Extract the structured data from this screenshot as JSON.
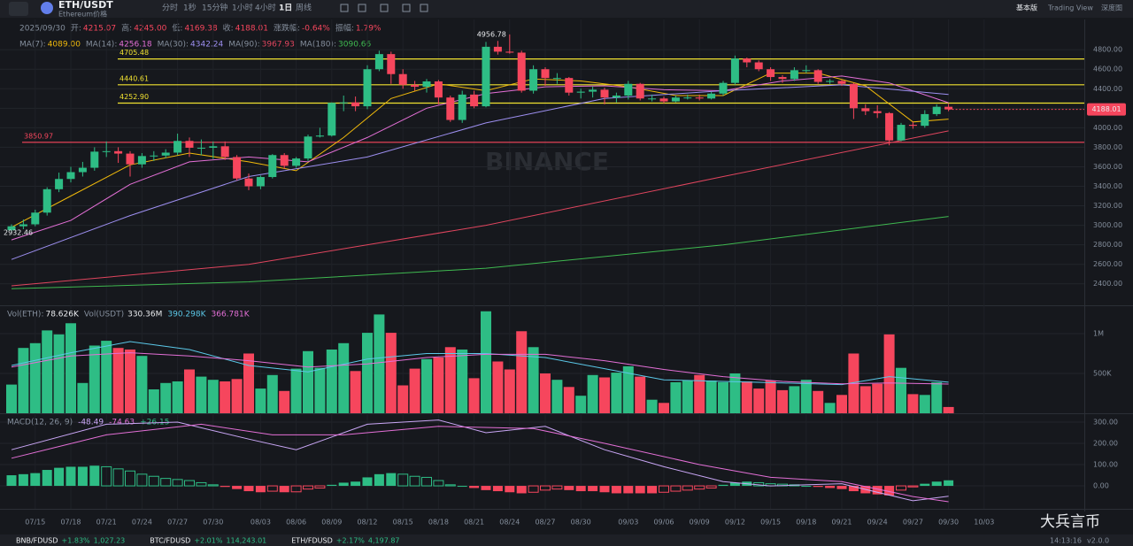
{
  "header": {
    "symbol": "ETH/USDT",
    "subtitle": "Ethereum价格",
    "intervals": [
      "分时",
      "1秒",
      "15分钟",
      "1小时",
      "4小时",
      "1日",
      "周线"
    ],
    "active": 5,
    "views": [
      "基本版",
      "Trading View",
      "深度图"
    ]
  },
  "info": {
    "date": "2025/09/30",
    "fields": [
      {
        "label": "开:",
        "value": "4215.07"
      },
      {
        "label": "高:",
        "value": "4245.00"
      },
      {
        "label": "低:",
        "value": "4169.38"
      },
      {
        "label": "收:",
        "value": "4188.01"
      },
      {
        "label": "涨跌幅:",
        "value": "-0.64%"
      },
      {
        "label": "振幅:",
        "value": "1.79%"
      }
    ]
  },
  "chart_data": {
    "type": "candlestick",
    "up_color": "#2ebd85",
    "down_color": "#f6465d",
    "watermark": "BINANCE",
    "ylim": [
      2180,
      5110
    ],
    "yticks": [
      {
        "value": 2400,
        "label": "2400.00"
      },
      {
        "value": 2600,
        "label": "2600.00"
      },
      {
        "value": 2800,
        "label": "2800.00"
      },
      {
        "value": 3000,
        "label": "3000.00"
      },
      {
        "value": 3200,
        "label": "3200.00"
      },
      {
        "value": 3400,
        "label": "3400.00"
      },
      {
        "value": 3600,
        "label": "3600.00"
      },
      {
        "value": 3800,
        "label": "3800.00"
      },
      {
        "value": 4000,
        "label": "4000.00"
      },
      {
        "value": 4200,
        "label": "4200.00"
      },
      {
        "value": 4400,
        "label": "4400.00"
      },
      {
        "value": 4600,
        "label": "4600.00"
      },
      {
        "value": 4800,
        "label": "4800.00"
      }
    ],
    "dates": [
      "07/15",
      "07/18",
      "07/21",
      "07/24",
      "07/27",
      "07/30",
      "08/03",
      "08/06",
      "08/09",
      "08/12",
      "08/15",
      "08/18",
      "08/21",
      "08/24",
      "08/27",
      "08/30",
      "09/03",
      "09/06",
      "09/09",
      "09/12",
      "09/15",
      "09/18",
      "09/21",
      "09/24",
      "09/27",
      "09/30",
      "10/03"
    ],
    "candles": [
      [
        2950,
        3010,
        2932.46,
        2990
      ],
      [
        2990,
        3060,
        2960,
        3010
      ],
      [
        3010,
        3160,
        2990,
        3130
      ],
      [
        3130,
        3390,
        3100,
        3370
      ],
      [
        3370,
        3540,
        3340,
        3475
      ],
      [
        3475,
        3600,
        3440,
        3545
      ],
      [
        3545,
        3650,
        3500,
        3590
      ],
      [
        3590,
        3800,
        3560,
        3755
      ],
      [
        3755,
        3860,
        3700,
        3760
      ],
      [
        3760,
        3800,
        3640,
        3735
      ],
      [
        3735,
        3760,
        3500,
        3625
      ],
      [
        3625,
        3740,
        3590,
        3710
      ],
      [
        3710,
        3760,
        3660,
        3715
      ],
      [
        3715,
        3780,
        3690,
        3745
      ],
      [
        3745,
        3940,
        3720,
        3865
      ],
      [
        3865,
        3900,
        3700,
        3795
      ],
      [
        3795,
        3880,
        3720,
        3795
      ],
      [
        3795,
        3860,
        3680,
        3810
      ],
      [
        3810,
        3860,
        3670,
        3700
      ],
      [
        3700,
        3720,
        3460,
        3480
      ],
      [
        3480,
        3530,
        3360,
        3400
      ],
      [
        3400,
        3510,
        3370,
        3495
      ],
      [
        3495,
        3730,
        3480,
        3720
      ],
      [
        3720,
        3740,
        3580,
        3610
      ],
      [
        3610,
        3700,
        3590,
        3685
      ],
      [
        3685,
        3930,
        3660,
        3910
      ],
      [
        3910,
        4000,
        3900,
        3920
      ],
      [
        3920,
        4260,
        3910,
        4255
      ],
      [
        4255,
        4330,
        4170,
        4260
      ],
      [
        4260,
        4320,
        4170,
        4220
      ],
      [
        4220,
        4640,
        4190,
        4600
      ],
      [
        4600,
        4790,
        4580,
        4755
      ],
      [
        4755,
        4780,
        4450,
        4550
      ],
      [
        4550,
        4600,
        4400,
        4440
      ],
      [
        4440,
        4480,
        4380,
        4420
      ],
      [
        4420,
        4500,
        4360,
        4475
      ],
      [
        4475,
        4490,
        4240,
        4310
      ],
      [
        4310,
        4330,
        4060,
        4080
      ],
      [
        4080,
        4380,
        4050,
        4340
      ],
      [
        4340,
        4380,
        4200,
        4220
      ],
      [
        4220,
        4880,
        4210,
        4830
      ],
      [
        4830,
        4890,
        4750,
        4780
      ],
      [
        4780,
        4956.78,
        4760,
        4770
      ],
      [
        4770,
        4790,
        4360,
        4380
      ],
      [
        4380,
        4640,
        4350,
        4600
      ],
      [
        4600,
        4620,
        4430,
        4510
      ],
      [
        4510,
        4560,
        4450,
        4510
      ],
      [
        4510,
        4520,
        4330,
        4360
      ],
      [
        4360,
        4400,
        4300,
        4370
      ],
      [
        4370,
        4420,
        4310,
        4390
      ],
      [
        4390,
        4410,
        4240,
        4310
      ],
      [
        4310,
        4360,
        4260,
        4330
      ],
      [
        4330,
        4480,
        4290,
        4450
      ],
      [
        4450,
        4460,
        4280,
        4300
      ],
      [
        4300,
        4340,
        4270,
        4300
      ],
      [
        4300,
        4320,
        4250,
        4270
      ],
      [
        4270,
        4330,
        4260,
        4310
      ],
      [
        4310,
        4340,
        4290,
        4310
      ],
      [
        4310,
        4340,
        4280,
        4300
      ],
      [
        4300,
        4370,
        4290,
        4350
      ],
      [
        4350,
        4480,
        4330,
        4460
      ],
      [
        4460,
        4740,
        4440,
        4710
      ],
      [
        4710,
        4720,
        4620,
        4670
      ],
      [
        4670,
        4690,
        4580,
        4600
      ],
      [
        4600,
        4620,
        4480,
        4520
      ],
      [
        4520,
        4540,
        4460,
        4500
      ],
      [
        4500,
        4620,
        4480,
        4590
      ],
      [
        4590,
        4640,
        4560,
        4590
      ],
      [
        4590,
        4600,
        4450,
        4470
      ],
      [
        4470,
        4500,
        4450,
        4480
      ],
      [
        4480,
        4490,
        4430,
        4450
      ],
      [
        4450,
        4460,
        4090,
        4200
      ],
      [
        4200,
        4240,
        4130,
        4170
      ],
      [
        4170,
        4230,
        4100,
        4150
      ],
      [
        4150,
        4160,
        3820,
        3870
      ],
      [
        3870,
        4050,
        3860,
        4030
      ],
      [
        4030,
        4060,
        3990,
        4020
      ],
      [
        4020,
        4180,
        4000,
        4140
      ],
      [
        4140,
        4240,
        4120,
        4215
      ],
      [
        4215.07,
        4245,
        4169.38,
        4188.01
      ]
    ],
    "levels": [
      {
        "value": 4705.48,
        "label": "4705.48",
        "color": "#f0e130"
      },
      {
        "value": 4440.61,
        "label": "4440.61",
        "color": "#f0e130"
      },
      {
        "value": 4252.9,
        "label": "4252.90",
        "color": "#f0e130"
      },
      {
        "value": 3850.97,
        "label": "3850.97",
        "color": "#f6465d"
      }
    ],
    "ma": [
      {
        "name": "MA(7):",
        "value": "4089.00",
        "color": "#f0b90b",
        "x": [
          0,
          5,
          10,
          15,
          20,
          24,
          28,
          32,
          36,
          40,
          44,
          48,
          52,
          56,
          60,
          64,
          68,
          72,
          76,
          79
        ],
        "values": [
          2980,
          3300,
          3620,
          3740,
          3650,
          3560,
          3900,
          4300,
          4450,
          4380,
          4500,
          4480,
          4420,
          4330,
          4330,
          4560,
          4560,
          4430,
          4060,
          4089
        ]
      },
      {
        "name": "MA(14):",
        "value": "4256.18",
        "color": "#e36fd6",
        "x": [
          0,
          5,
          10,
          15,
          20,
          25,
          30,
          35,
          40,
          45,
          50,
          55,
          60,
          65,
          70,
          74,
          79
        ],
        "values": [
          2850,
          3050,
          3420,
          3650,
          3700,
          3650,
          3900,
          4200,
          4350,
          4420,
          4430,
          4390,
          4380,
          4480,
          4530,
          4460,
          4256
        ]
      },
      {
        "name": "MA(30):",
        "value": "4342.24",
        "color": "#9d8ff0",
        "x": [
          0,
          10,
          20,
          30,
          40,
          50,
          60,
          70,
          79
        ],
        "values": [
          2650,
          3100,
          3500,
          3700,
          4050,
          4300,
          4380,
          4440,
          4342
        ]
      },
      {
        "name": "MA(90):",
        "value": "3967.93",
        "color": "#e0455e",
        "x": [
          0,
          20,
          40,
          60,
          79
        ],
        "values": [
          2380,
          2600,
          3000,
          3500,
          3968
        ]
      },
      {
        "name": "MA(180):",
        "value": "3090.66",
        "color": "#3fb950",
        "x": [
          0,
          20,
          40,
          60,
          79
        ],
        "values": [
          2350,
          2420,
          2560,
          2800,
          3091
        ]
      }
    ],
    "volume": {
      "label": "Vol(ETH):",
      "last_label": "78.626K",
      "usdt_label": "Vol(USDT)",
      "usdt_value": "330.36M",
      "ylim": [
        0,
        1322000
      ],
      "yticks": [
        {
          "value": 500000,
          "label": "500K"
        },
        {
          "value": 1000000,
          "label": "1M"
        }
      ],
      "values": [
        360000,
        820000,
        880000,
        1040000,
        990000,
        1130000,
        380000,
        850000,
        910000,
        820000,
        800000,
        720000,
        300000,
        380000,
        400000,
        550000,
        460000,
        420000,
        400000,
        430000,
        750000,
        310000,
        480000,
        280000,
        560000,
        780000,
        570000,
        800000,
        880000,
        530000,
        1010000,
        1240000,
        1010000,
        350000,
        560000,
        680000,
        700000,
        830000,
        800000,
        440000,
        1280000,
        650000,
        550000,
        1030000,
        830000,
        500000,
        420000,
        330000,
        220000,
        480000,
        450000,
        510000,
        590000,
        460000,
        170000,
        130000,
        390000,
        410000,
        480000,
        410000,
        390000,
        500000,
        400000,
        310000,
        410000,
        290000,
        340000,
        420000,
        280000,
        130000,
        230000,
        750000,
        340000,
        370000,
        990000,
        570000,
        240000,
        230000,
        390000,
        78626
      ],
      "ma": [
        {
          "value": "390.298K",
          "color": "#5bc8e8",
          "x": [
            0,
            5,
            10,
            15,
            20,
            25,
            30,
            35,
            40,
            45,
            50,
            55,
            60,
            65,
            70,
            74,
            79
          ],
          "values": [
            600000,
            760000,
            900000,
            800000,
            600000,
            520000,
            680000,
            750000,
            750000,
            700000,
            560000,
            420000,
            400000,
            380000,
            360000,
            460000,
            390298
          ]
        },
        {
          "value": "366.781K",
          "color": "#e36fd6",
          "x": [
            0,
            5,
            10,
            15,
            20,
            25,
            30,
            35,
            40,
            45,
            50,
            55,
            60,
            65,
            70,
            74,
            79
          ],
          "values": [
            580000,
            720000,
            760000,
            720000,
            660000,
            580000,
            620000,
            700000,
            740000,
            740000,
            660000,
            550000,
            460000,
            400000,
            370000,
            380000,
            366781
          ]
        }
      ]
    },
    "macd": {
      "label": "MACD(12, 26, 9)",
      "ylim": [
        -108,
        329
      ],
      "yticks": [
        {
          "value": 0,
          "label": "0.00"
        },
        {
          "value": 100,
          "label": "100.00"
        },
        {
          "value": 200,
          "label": "200.00"
        },
        {
          "value": 300,
          "label": "300.00"
        }
      ],
      "hist_label": "+26.15",
      "hist": [
        50,
        55,
        60,
        75,
        85,
        90,
        90,
        95,
        90,
        80,
        70,
        55,
        45,
        35,
        30,
        25,
        15,
        5,
        -5,
        -15,
        -25,
        -30,
        -25,
        -30,
        -28,
        -15,
        -10,
        5,
        15,
        20,
        40,
        55,
        60,
        55,
        45,
        40,
        25,
        5,
        0,
        -10,
        -20,
        -25,
        -30,
        -35,
        -30,
        -20,
        -15,
        -20,
        -25,
        -25,
        -30,
        -35,
        -35,
        -35,
        -35,
        -30,
        -25,
        -20,
        -15,
        -10,
        5,
        15,
        20,
        15,
        10,
        8,
        5,
        0,
        -5,
        -10,
        -15,
        -25,
        -35,
        -40,
        -45,
        -20,
        -5,
        10,
        20,
        26.15
      ],
      "lines": [
        {
          "value": "-48.49",
          "color": "#c9a6f5",
          "x": [
            0,
            8,
            14,
            20,
            24,
            30,
            36,
            40,
            45,
            50,
            55,
            60,
            64,
            70,
            76,
            79
          ],
          "values": [
            170,
            290,
            300,
            220,
            170,
            290,
            310,
            250,
            280,
            170,
            90,
            20,
            0,
            10,
            -70,
            -48.49
          ]
        },
        {
          "value": "-74.63",
          "color": "#e36fd6",
          "x": [
            0,
            8,
            16,
            22,
            28,
            36,
            44,
            50,
            58,
            64,
            70,
            76,
            79
          ],
          "values": [
            130,
            240,
            290,
            240,
            240,
            280,
            270,
            200,
            100,
            40,
            20,
            -50,
            -74.63
          ]
        }
      ]
    }
  },
  "footer": {
    "tickers": [
      {
        "symbol": "BNB/FDUSD",
        "change": "+1.83%",
        "price": "1,027.23"
      },
      {
        "symbol": "BTC/FDUSD",
        "change": "+2.01%",
        "price": "114,243.01"
      },
      {
        "symbol": "ETH/FDUSD",
        "change": "+2.17%",
        "price": "4,197.87"
      }
    ],
    "time": "14:13:16",
    "version": "v2.0.0",
    "watermark": "大兵言币"
  }
}
